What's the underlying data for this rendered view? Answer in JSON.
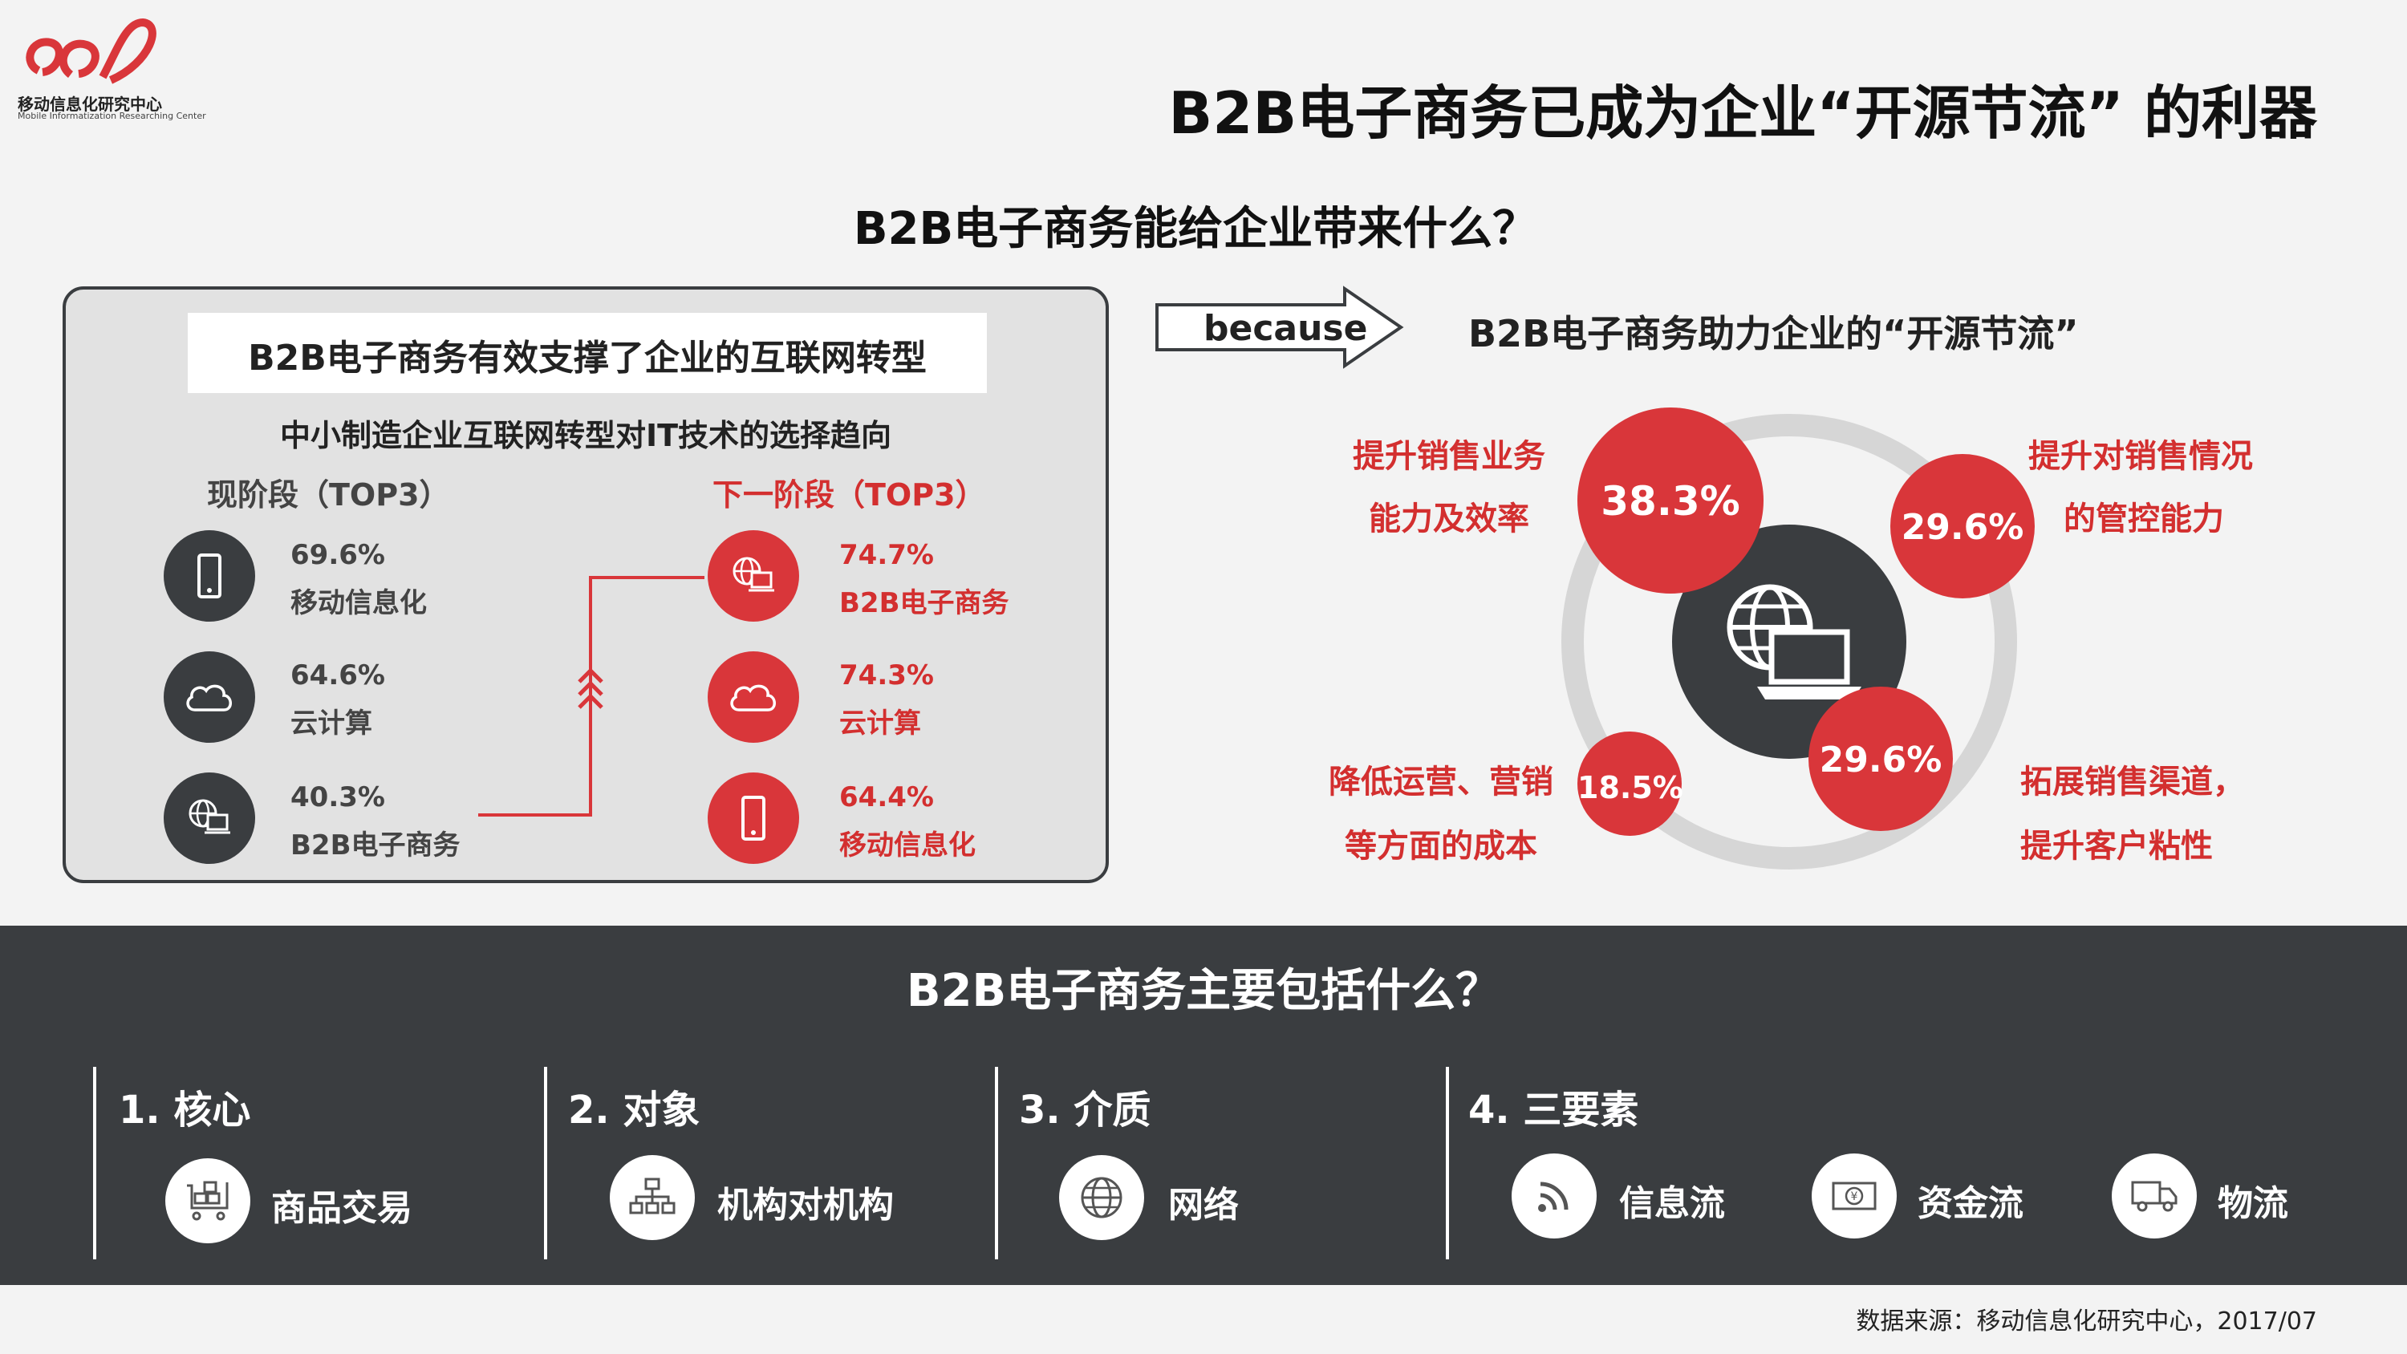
{
  "logo": {
    "name": "移动信息化研究中心",
    "sub": "Mobile Informatization Researching Center"
  },
  "page_title": "B2B电子商务已成为企业“开源节流” 的利器",
  "section1_title": "B2B电子商务能给企业带来什么？",
  "left_panel": {
    "title": "B2B电子商务有效支撑了企业的互联网转型",
    "subtitle": "中小制造企业互联网转型对IT技术的选择趋向",
    "current_header": "现阶段（TOP3）",
    "next_header": "下一阶段（TOP3）",
    "current_items": [
      {
        "pct": "69.6%",
        "label": "移动信息化",
        "icon": "mobile-icon"
      },
      {
        "pct": "64.6%",
        "label": "云计算",
        "icon": "cloud-icon"
      },
      {
        "pct": "40.3%",
        "label": "B2B电子商务",
        "icon": "globe-laptop-icon"
      }
    ],
    "next_items": [
      {
        "pct": "74.7%",
        "label": "B2B电子商务",
        "icon": "globe-laptop-icon"
      },
      {
        "pct": "74.3%",
        "label": "云计算",
        "icon": "cloud-icon"
      },
      {
        "pct": "64.4%",
        "label": "移动信息化",
        "icon": "mobile-icon"
      }
    ]
  },
  "because_label": "because",
  "right_panel": {
    "title": "B2B电子商务助力企业的“开源节流”",
    "bubbles": [
      {
        "value": "38.3%",
        "label_line1": "提升销售业务",
        "label_line2": "能力及效率"
      },
      {
        "value": "29.6%",
        "label_line1": "提升对销售情况",
        "label_line2": "的管控能力"
      },
      {
        "value": "18.5%",
        "label_line1": "降低运营、营销",
        "label_line2": "等方面的成本"
      },
      {
        "value": "29.6%",
        "label_line1": "拓展销售渠道，",
        "label_line2": "提升客户粘性"
      }
    ]
  },
  "section2_title": "B2B电子商务主要包括什么？",
  "categories": [
    {
      "title": "1. 核心",
      "items": [
        {
          "label": "商品交易",
          "icon": "goods-cart-icon"
        }
      ]
    },
    {
      "title": "2. 对象",
      "items": [
        {
          "label": "机构对机构",
          "icon": "org-chart-icon"
        }
      ]
    },
    {
      "title": "3. 介质",
      "items": [
        {
          "label": "网络",
          "icon": "globe-icon"
        }
      ]
    },
    {
      "title": "4. 三要素",
      "items": [
        {
          "label": "信息流",
          "icon": "signal-icon"
        },
        {
          "label": "资金流",
          "icon": "money-icon"
        },
        {
          "label": "物流",
          "icon": "truck-icon"
        }
      ]
    }
  ],
  "source": "数据来源：移动信息化研究中心，2017/07",
  "colors": {
    "accent_red": "#d9363a",
    "dark": "#3a3d40"
  }
}
